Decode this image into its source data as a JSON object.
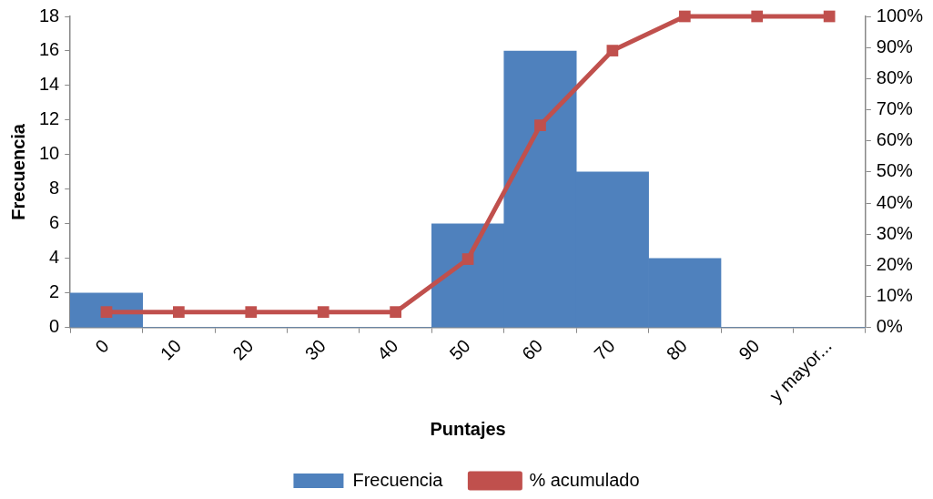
{
  "chart_data": {
    "type": "bar",
    "xlabel": "Puntajes",
    "ylabel": "Frecuencia",
    "categories": [
      "0",
      "10",
      "20",
      "30",
      "40",
      "50",
      "60",
      "70",
      "80",
      "90",
      "y mayor..."
    ],
    "series": [
      {
        "name": "Frecuencia",
        "color": "#4f81bd",
        "values": [
          2,
          0,
          0,
          0,
          0,
          6,
          16,
          9,
          4,
          0,
          0
        ]
      },
      {
        "name": "% acumulado",
        "type": "line",
        "axis": "y2",
        "color": "#c0504d",
        "values": [
          5,
          5,
          5,
          5,
          5,
          22,
          65,
          89,
          100,
          100,
          100
        ]
      }
    ],
    "ylim": [
      0,
      18
    ],
    "yticks": [
      0,
      2,
      4,
      6,
      8,
      10,
      12,
      14,
      16,
      18
    ],
    "y2lim": [
      0,
      100
    ],
    "y2ticks": [
      {
        "value": 0,
        "label": "0%"
      },
      {
        "value": 10,
        "label": "10%"
      },
      {
        "value": 20,
        "label": "20%"
      },
      {
        "value": 30,
        "label": "30%"
      },
      {
        "value": 40,
        "label": "40%"
      },
      {
        "value": 50,
        "label": "50%"
      },
      {
        "value": 60,
        "label": "60%"
      },
      {
        "value": 70,
        "label": "70%"
      },
      {
        "value": 80,
        "label": "80%"
      },
      {
        "value": 90,
        "label": "90%"
      },
      {
        "value": 100,
        "label": "100%"
      }
    ],
    "grid": false,
    "legend": "bottom",
    "marker": "square",
    "line_style": "solid"
  }
}
